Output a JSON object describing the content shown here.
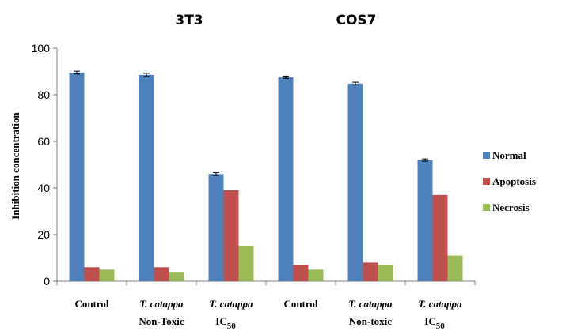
{
  "chart_data": {
    "type": "bar",
    "group_titles": [
      "3T3",
      "COS7"
    ],
    "ylabel": "Inhibition concentration",
    "ylim": [
      0,
      100
    ],
    "yticks": [
      0,
      20,
      40,
      60,
      80,
      100
    ],
    "categories": [
      {
        "line1": "Control",
        "line1_italic": false,
        "line2": "",
        "line2_sub": ""
      },
      {
        "line1": "T. catappa",
        "line1_italic": true,
        "line2": "Non-Toxic",
        "line2_sub": ""
      },
      {
        "line1": "T. catappa",
        "line1_italic": true,
        "line2": "IC",
        "line2_sub": "50"
      },
      {
        "line1": "Control",
        "line1_italic": false,
        "line2": "",
        "line2_sub": ""
      },
      {
        "line1": "T. catappa",
        "line1_italic": true,
        "line2": "Non-toxic",
        "line2_sub": ""
      },
      {
        "line1": "T. catappa",
        "line1_italic": true,
        "line2": "IC",
        "line2_sub": "50"
      }
    ],
    "series": [
      {
        "name": "Normal",
        "color": "#4F81BD",
        "values": [
          89.5,
          88.5,
          46,
          87.5,
          84.8,
          52
        ],
        "errors": [
          0.6,
          0.7,
          0.6,
          0.5,
          0.6,
          0.5
        ]
      },
      {
        "name": "Apoptosis",
        "color": "#C0504D",
        "values": [
          6,
          6,
          39,
          7,
          8,
          37
        ],
        "errors": [
          0,
          0,
          0,
          0,
          0,
          0
        ]
      },
      {
        "name": "Necrosis",
        "color": "#9BBB59",
        "values": [
          5,
          4,
          15,
          5,
          7,
          11
        ],
        "errors": [
          0,
          0,
          0,
          0,
          0,
          0
        ]
      }
    ],
    "legend_position": "right",
    "grid": false
  }
}
